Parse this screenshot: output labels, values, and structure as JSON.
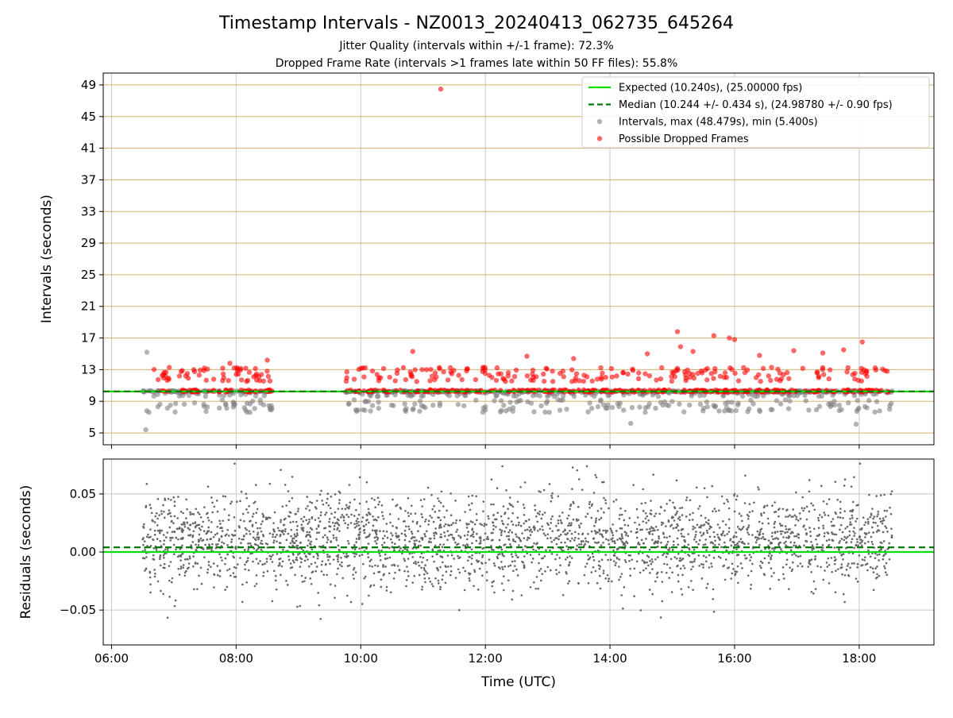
{
  "figure": {
    "title": "Timestamp Intervals - NZ0013_20240413_062735_645264",
    "subtitle_1": "Jitter Quality (intervals within +/-1 frame): 72.3%",
    "subtitle_2": "Dropped Frame Rate (intervals >1 frames late within 50 FF files): 55.8%"
  },
  "colors": {
    "expected": "#00e000",
    "median": "#007a00",
    "intervals": "#808080",
    "dropped": "#ff0000",
    "hgrid": "#d4b06a",
    "vgrid": "#c8c8c8"
  },
  "chart_data": [
    {
      "type": "scatter",
      "panel": "intervals",
      "ylabel": "Intervals (seconds)",
      "xlabel": "",
      "xlim": [
        "05:52",
        "19:12"
      ],
      "ylim": [
        3.5,
        50.5
      ],
      "x_ticks": [
        "06:00",
        "08:00",
        "10:00",
        "12:00",
        "14:00",
        "16:00",
        "18:00"
      ],
      "y_ticks": [
        5,
        9,
        13,
        17,
        21,
        25,
        29,
        33,
        37,
        41,
        45,
        49
      ],
      "grid": {
        "horizontal_color": "tan",
        "vertical_color": "lightgray"
      },
      "legend_position": "top-right",
      "series": [
        {
          "name": "Expected (10.240s), (25.00000 fps)",
          "kind": "hline",
          "y": 10.24,
          "style": "solid"
        },
        {
          "name": "Median (10.244 +/- 0.434 s), (24.98780 +/- 0.90 fps)",
          "kind": "hline",
          "y": 10.244,
          "style": "dashed"
        },
        {
          "name": "Intervals, max (48.479s), min (5.400s)",
          "kind": "scatter",
          "time_ranges": [
            [
              "06:30",
              "08:35"
            ],
            [
              "09:45",
              "18:32"
            ]
          ],
          "max": 48.479,
          "min": 5.4,
          "median": 10.244,
          "std": 0.434,
          "outliers": [
            {
              "x": "06:34",
              "y": 15.2
            },
            {
              "x": "06:33",
              "y": 5.4
            },
            {
              "x": "06:36",
              "y": 7.6
            },
            {
              "x": "14:20",
              "y": 6.2
            },
            {
              "x": "17:57",
              "y": 6.1
            }
          ]
        },
        {
          "name": "Possible Dropped Frames",
          "kind": "scatter",
          "time_ranges": [
            [
              "06:40",
              "08:35"
            ],
            [
              "09:45",
              "18:30"
            ]
          ],
          "points": [
            {
              "x": "11:17",
              "y": 48.479
            },
            {
              "x": "15:05",
              "y": 17.8
            },
            {
              "x": "15:40",
              "y": 17.3
            },
            {
              "x": "15:55",
              "y": 17.0
            },
            {
              "x": "16:00",
              "y": 16.8
            },
            {
              "x": "18:03",
              "y": 16.5
            },
            {
              "x": "10:50",
              "y": 15.3
            },
            {
              "x": "15:08",
              "y": 15.9
            },
            {
              "x": "16:57",
              "y": 15.4
            },
            {
              "x": "17:45",
              "y": 15.5
            },
            {
              "x": "14:36",
              "y": 15.0
            },
            {
              "x": "08:30",
              "y": 14.2
            },
            {
              "x": "13:25",
              "y": 14.4
            },
            {
              "x": "12:40",
              "y": 14.7
            },
            {
              "x": "17:25",
              "y": 15.1
            },
            {
              "x": "16:24",
              "y": 14.8
            },
            {
              "x": "15:20",
              "y": 15.3
            },
            {
              "x": "07:54",
              "y": 13.8
            }
          ]
        }
      ]
    },
    {
      "type": "scatter",
      "panel": "residuals",
      "ylabel": "Residuals (seconds)",
      "xlabel": "Time (UTC)",
      "xlim": [
        "05:52",
        "19:12"
      ],
      "ylim": [
        -0.08,
        0.08
      ],
      "x_ticks": [
        "06:00",
        "08:00",
        "10:00",
        "12:00",
        "14:00",
        "16:00",
        "18:00"
      ],
      "y_ticks": [
        0.05,
        0.0,
        -0.05
      ],
      "y_tick_labels": [
        "0.05",
        "0.00",
        "−0.05"
      ],
      "grid": {
        "color": "lightgray"
      },
      "series": [
        {
          "name": "Expected",
          "kind": "hline",
          "y": 0.0,
          "style": "solid"
        },
        {
          "name": "Median",
          "kind": "hline",
          "y": 0.004,
          "style": "dashed"
        },
        {
          "name": "Residuals",
          "kind": "scatter",
          "time_ranges": [
            [
              "06:30",
              "18:32"
            ]
          ],
          "center": 0.01,
          "spread": 0.02
        }
      ]
    }
  ]
}
